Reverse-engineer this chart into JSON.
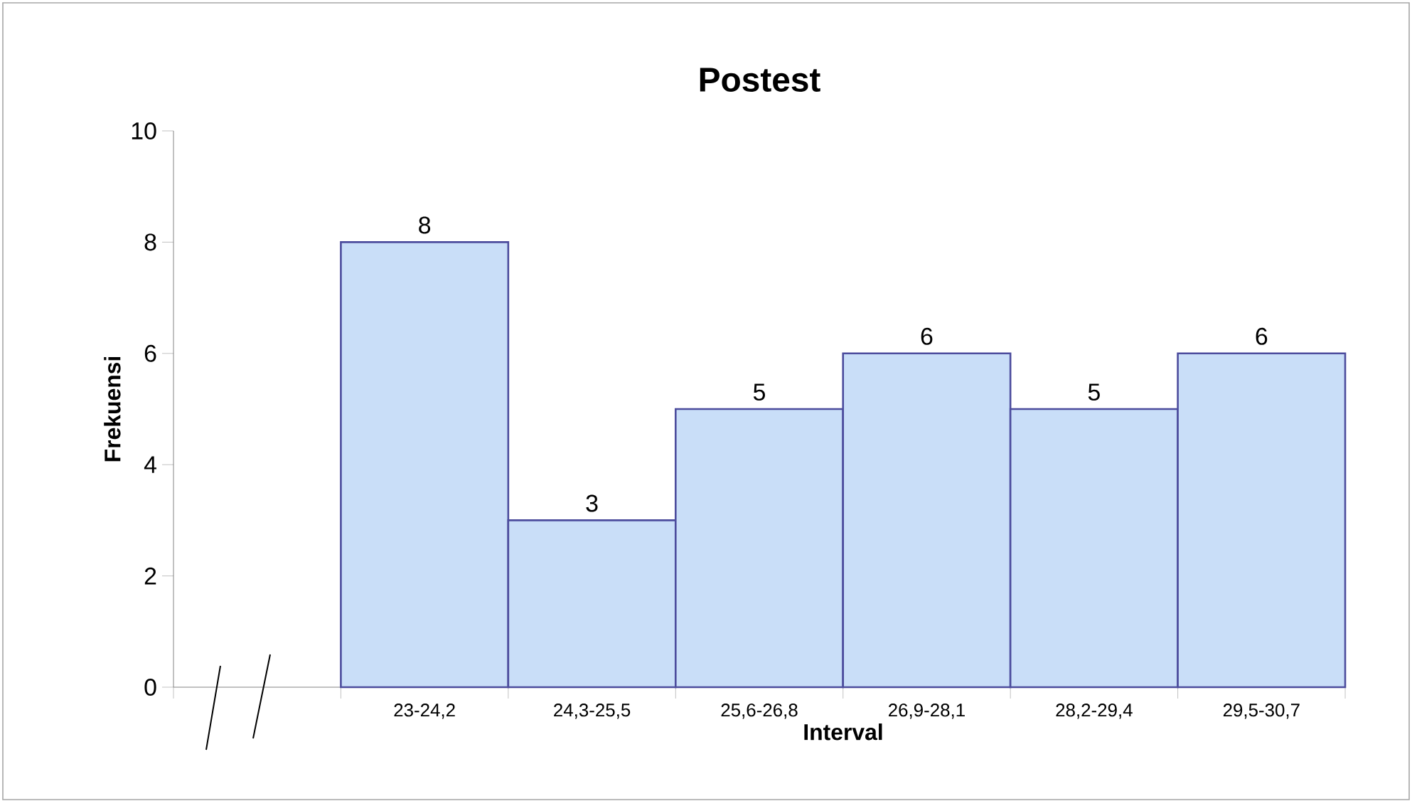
{
  "chart_data": {
    "type": "bar",
    "title": "Postest",
    "xlabel": "Interval",
    "ylabel": "Frekuensi",
    "categories": [
      null,
      "23-24,2",
      "24,3-25,5",
      "25,6-26,8",
      "26,9-28,1",
      "28,2-29,4",
      "29,5-30,7"
    ],
    "values": [
      null,
      8,
      3,
      5,
      6,
      5,
      6
    ],
    "color": "#c9def8",
    "ylim": [
      0,
      10
    ],
    "yticks": [
      0,
      2,
      4,
      6,
      8,
      10
    ],
    "data_labels": true
  }
}
